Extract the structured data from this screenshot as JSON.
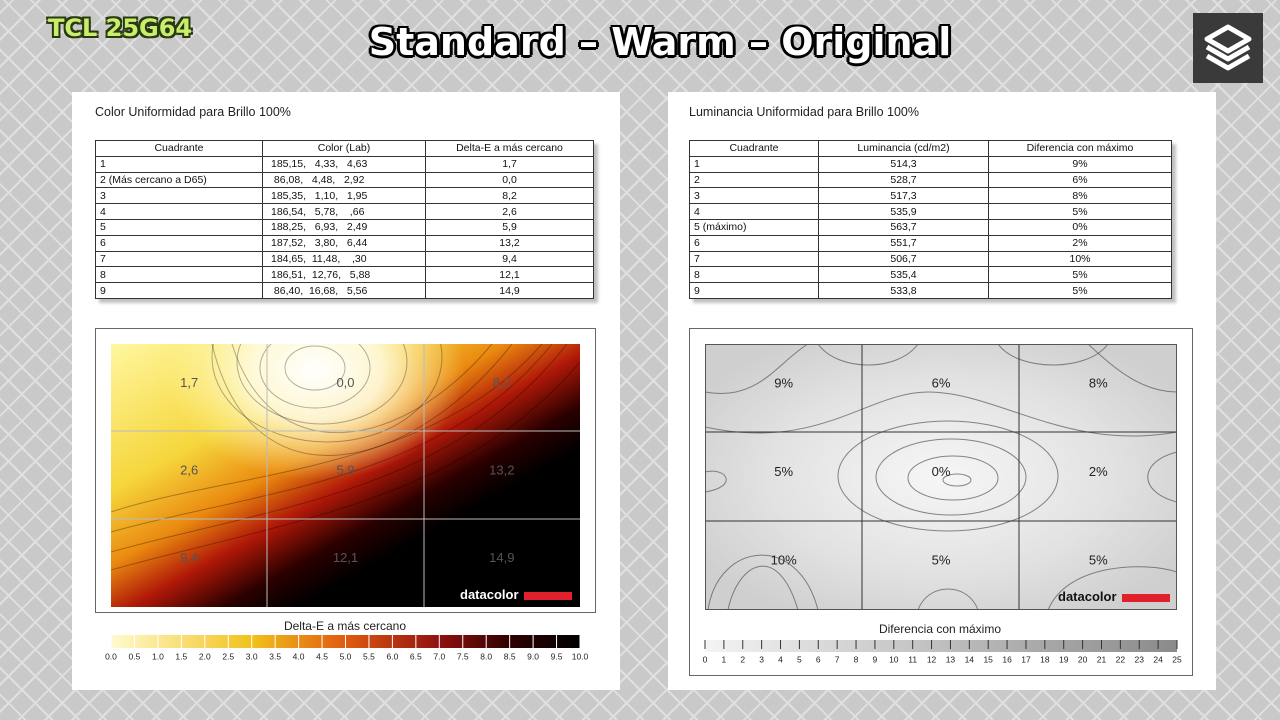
{
  "header": {
    "brand": "TCL 25G64",
    "title": "Standard – Warm – Original"
  },
  "left_panel": {
    "title": "Color Uniformidad para Brillo 100%",
    "table": {
      "columns": [
        "Cuadrante",
        "Color (Lab)",
        "Delta-E a más cercano"
      ],
      "rows": [
        [
          "1",
          "185,15,   4,33,   4,63",
          "1,7"
        ],
        [
          "2 (Más cercano a D65)",
          " 86,08,   4,48,   2,92",
          "0,0"
        ],
        [
          "3",
          "185,35,   1,10,   1,95",
          "8,2"
        ],
        [
          "4",
          "186,54,   5,78,    ,66",
          "2,6"
        ],
        [
          "5",
          "188,25,   6,93,   2,49",
          "5,9"
        ],
        [
          "6",
          "187,52,   3,80,   6,44",
          "13,2"
        ],
        [
          "7",
          "184,65,  11,48,    ,30",
          "9,4"
        ],
        [
          "8",
          "186,51,  12,76,   5,88",
          "12,1"
        ],
        [
          "9",
          " 86,40,  16,68,   5,56",
          "14,9"
        ]
      ]
    },
    "heatmap": {
      "cells": [
        "1,7",
        "0,0",
        "8,2",
        "2,6",
        "5,9",
        "13,2",
        "9,4",
        "12,1",
        "14,9"
      ],
      "brand": "datacolor",
      "legend_title": "Delta-E a más cercano",
      "scale_labels": [
        "0.0",
        "0.5",
        "1.0",
        "1.5",
        "2.0",
        "2.5",
        "3.0",
        "3.5",
        "4.0",
        "4.5",
        "5.0",
        "5.5",
        "6.0",
        "6.5",
        "7.0",
        "7.5",
        "8.0",
        "8.5",
        "9.0",
        "9.5",
        "10.0"
      ]
    }
  },
  "right_panel": {
    "title": "Luminancia Uniformidad para Brillo 100%",
    "table": {
      "columns": [
        "Cuadrante",
        "Luminancia (cd/m2)",
        "Diferencia con máximo"
      ],
      "rows": [
        [
          "1",
          "514,3",
          "9%"
        ],
        [
          "2",
          "528,7",
          "6%"
        ],
        [
          "3",
          "517,3",
          "8%"
        ],
        [
          "4",
          "535,9",
          "5%"
        ],
        [
          "5 (máximo)",
          "563,7",
          "0%"
        ],
        [
          "6",
          "551,7",
          "2%"
        ],
        [
          "7",
          "506,7",
          "10%"
        ],
        [
          "8",
          "535,4",
          "5%"
        ],
        [
          "9",
          "533,8",
          "5%"
        ]
      ]
    },
    "heatmap": {
      "cells": [
        "9%",
        "6%",
        "8%",
        "5%",
        "0%",
        "2%",
        "10%",
        "5%",
        "5%"
      ],
      "brand": "datacolor",
      "legend_title": "Diferencia con máximo",
      "scale_labels": [
        "0",
        "1",
        "2",
        "3",
        "4",
        "5",
        "6",
        "7",
        "8",
        "9",
        "10",
        "11",
        "12",
        "13",
        "14",
        "15",
        "16",
        "17",
        "18",
        "19",
        "20",
        "21",
        "22",
        "23",
        "24",
        "25"
      ]
    }
  }
}
